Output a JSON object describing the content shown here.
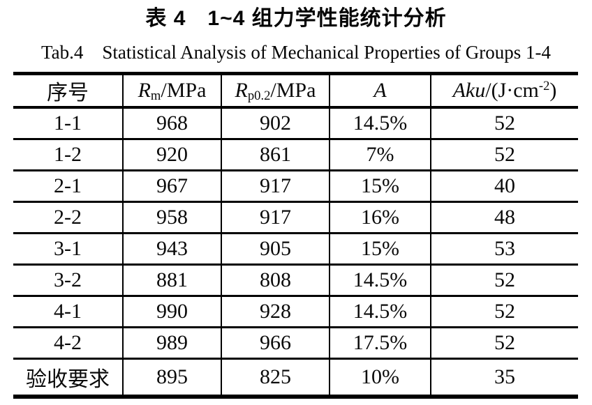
{
  "caption": {
    "zh": "表 4　1~4 组力学性能统计分析",
    "en": "Tab.4　Statistical Analysis of Mechanical Properties of Groups 1-4"
  },
  "table": {
    "headers": [
      {
        "name": "serial-number",
        "segments": [
          {
            "t": "序号",
            "s": "n"
          }
        ]
      },
      {
        "name": "tensile-strength",
        "segments": [
          {
            "t": "R",
            "s": "i"
          },
          {
            "t": "m",
            "s": "sub"
          },
          {
            "t": "/MPa",
            "s": "n"
          }
        ]
      },
      {
        "name": "yield-strength",
        "segments": [
          {
            "t": "R",
            "s": "i"
          },
          {
            "t": "p0.2",
            "s": "sub"
          },
          {
            "t": "/MPa",
            "s": "n"
          }
        ]
      },
      {
        "name": "elongation",
        "segments": [
          {
            "t": "A",
            "s": "i"
          }
        ]
      },
      {
        "name": "impact-toughness",
        "segments": [
          {
            "t": "Aku",
            "s": "i"
          },
          {
            "t": "/(J·cm",
            "s": "n"
          },
          {
            "t": "-2",
            "s": "sup"
          },
          {
            "t": ")",
            "s": "n"
          }
        ]
      }
    ],
    "rows": [
      [
        "1-1",
        "968",
        "902",
        "14.5%",
        "52"
      ],
      [
        "1-2",
        "920",
        "861",
        "7%",
        "52"
      ],
      [
        "2-1",
        "967",
        "917",
        "15%",
        "40"
      ],
      [
        "2-2",
        "958",
        "917",
        "16%",
        "48"
      ],
      [
        "3-1",
        "943",
        "905",
        "15%",
        "53"
      ],
      [
        "3-2",
        "881",
        "808",
        "14.5%",
        "52"
      ],
      [
        "4-1",
        "990",
        "928",
        "14.5%",
        "52"
      ],
      [
        "4-2",
        "989",
        "966",
        "17.5%",
        "52"
      ],
      [
        "验收要求",
        "895",
        "825",
        "10%",
        "35"
      ]
    ]
  },
  "colors": {
    "text": "#0a0a0a",
    "background": "#ffffff",
    "border": "#000000"
  }
}
